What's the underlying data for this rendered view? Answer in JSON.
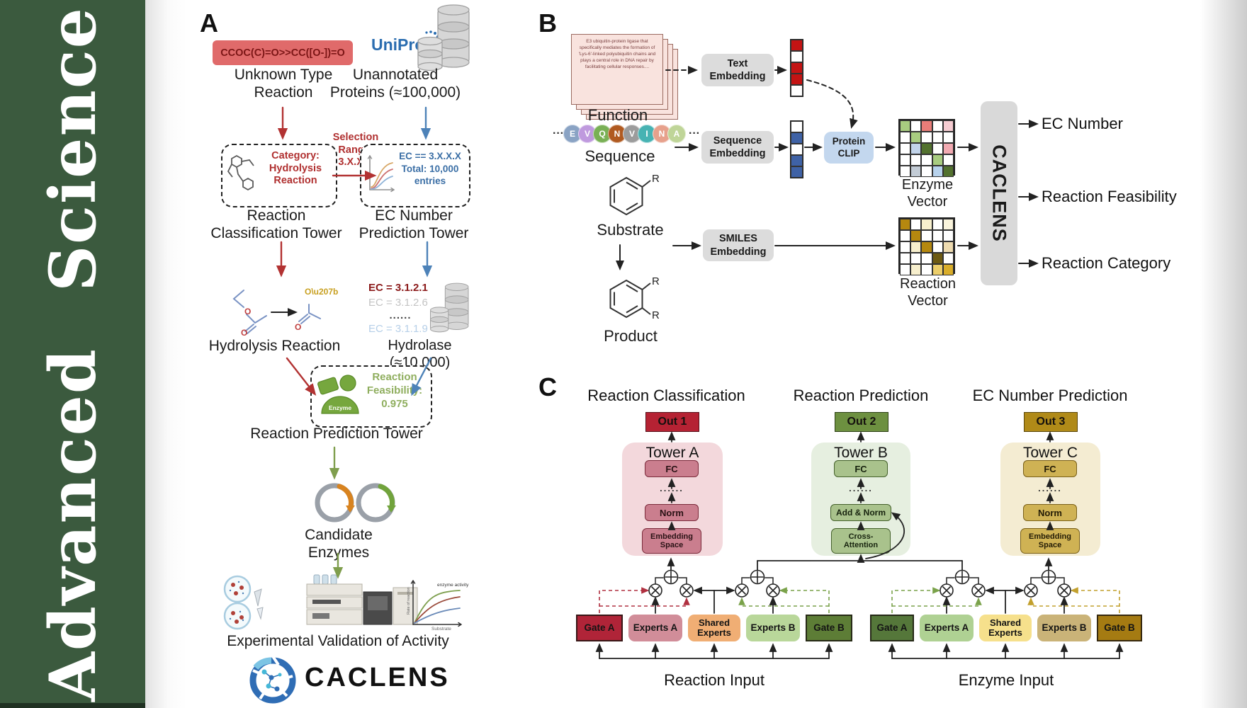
{
  "sidebar": {
    "title": "Advanced Science",
    "bg_color": "#3b5a3e"
  },
  "panelA": {
    "label": "A",
    "smiles": "CCOC(C)=O>>CC([O-])=O",
    "unknown_reaction": "Unknown Type\nReaction",
    "uniprot": "UniProt",
    "unannotated": "Unannotated\nProteins (≈100,000)",
    "selection": "Selection\nRange:\n3.X.X.X",
    "category_box": "Category:\nHydrolysis\nReaction",
    "ec_box": "EC == 3.X.X.X\nTotal: 10,000\nentries",
    "classification_tower": "Reaction\nClassification Tower",
    "ec_tower": "EC Number\nPrediction Tower",
    "ec_list": [
      "EC = 3.1.2.1",
      "EC = 3.1.2.6",
      "......",
      "EC = 3.1.1.9"
    ],
    "hydrolysis": "Hydrolysis Reaction",
    "hydrolase": "Hydrolase (≈10,000)",
    "enzyme": "Enzyme",
    "feasibility": "Reaction\nFeasibility:\n0.975",
    "prediction_tower": "Reaction Prediction Tower",
    "candidates": "Candidate Enzymes",
    "validation": "Experimental Validation of Activity",
    "logo": "CACLENS",
    "activity_chart": {
      "curve_label": "enzyme activity",
      "ylabel": "Rate of reaction",
      "xlabel": "Substrate"
    },
    "accent_red": "#b03030",
    "accent_blue": "#4d82b8",
    "accent_green": "#7f9e4d"
  },
  "panelB": {
    "label": "B",
    "function_text": "E3 ubiquitin-protein ligase that specifically mediates the formation of 'Lys-6'-linked polyubiquitin chains and plays a central role in DNA repair by facilitating cellular responses....",
    "function": "Function",
    "ellipsis": "···",
    "sequence_residues": [
      {
        "letter": "E",
        "color": "#8aa3c4"
      },
      {
        "letter": "V",
        "color": "#bf9ade"
      },
      {
        "letter": "Q",
        "color": "#79b055"
      },
      {
        "letter": "N",
        "color": "#b05a20"
      },
      {
        "letter": "V",
        "color": "#9c9c9c"
      },
      {
        "letter": "I",
        "color": "#47b3b3"
      },
      {
        "letter": "N",
        "color": "#e7a18c"
      },
      {
        "letter": "A",
        "color": "#bfd598"
      }
    ],
    "sequence": "Sequence",
    "substrate": "Substrate",
    "product": "Product",
    "r_group": "R",
    "text_embedding": "Text\nEmbedding",
    "sequence_embedding": "Sequence\nEmbedding",
    "smiles_embedding": "SMILES\nEmbedding",
    "protein_clip": "Protein\nCLIP",
    "text_vector": [
      "#c41414",
      "#ffffff",
      "#c41414",
      "#c41414",
      "#ffffff"
    ],
    "sequence_vector": [
      "#ffffff",
      "#3f62a6",
      "#ffffff",
      "#3f62a6",
      "#3f62a6"
    ],
    "enzyme_vector_label": "Enzyme Vector",
    "reaction_vector_label": "Reaction Vector",
    "enzyme_vector_grid": [
      [
        "#a8cc80",
        "#ffffff",
        "#e87d78",
        "#ffffff",
        "#f6ccd2"
      ],
      [
        "#ffffff",
        "#a8cc80",
        "#ffffff",
        "#ffffff",
        "#ffffff"
      ],
      [
        "#ffffff",
        "#c2d4ea",
        "#53722f",
        "#ffffff",
        "#f2aab2"
      ],
      [
        "#ffffff",
        "#ffffff",
        "#ffffff",
        "#a8cc80",
        "#ffffff"
      ],
      [
        "#ffffff",
        "#c3ccd6",
        "#ffffff",
        "#b7d2ec",
        "#53722f"
      ]
    ],
    "reaction_vector_grid": [
      [
        "#b5880f",
        "#ffffff",
        "#f7efcd",
        "#ffffff",
        "#faf4dc"
      ],
      [
        "#ffffff",
        "#b5880f",
        "#ffffff",
        "#ffffff",
        "#ffffff"
      ],
      [
        "#ffffff",
        "#f7efcd",
        "#b5880f",
        "#ffffff",
        "#eedbb0"
      ],
      [
        "#ffffff",
        "#ffffff",
        "#ffffff",
        "#6d5a12",
        "#ffffff"
      ],
      [
        "#ffffff",
        "#f7efcd",
        "#ffffff",
        "#ecce6a",
        "#d9ad2a"
      ]
    ],
    "caclens": "CACLENS",
    "outputs": [
      "EC Number",
      "Reaction Feasibility",
      "Reaction Category"
    ]
  },
  "panelC": {
    "label": "C",
    "sections": [
      "Reaction Classification",
      "Reaction Prediction",
      "EC Number Prediction"
    ],
    "outs": [
      "Out 1",
      "Out 2",
      "Out 3"
    ],
    "out_colors": [
      "#b52233",
      "#6d9040",
      "#b08a18"
    ],
    "towers": [
      {
        "title": "Tower A",
        "fc": "FC",
        "dots": "......",
        "norm": "Norm",
        "bottom": "Embedding\nSpace"
      },
      {
        "title": "Tower B",
        "fc": "FC",
        "dots": "......",
        "norm": "Add & Norm",
        "bottom": "Cross-\nAttention"
      },
      {
        "title": "Tower C",
        "fc": "FC",
        "dots": "......",
        "norm": "Norm",
        "bottom": "Embedding\nSpace"
      }
    ],
    "moe_left": {
      "gate_a": "Gate A",
      "experts_a": "Experts A",
      "shared": "Shared\nExperts",
      "experts_b": "Experts B",
      "gate_b": "Gate B",
      "input": "Reaction Input",
      "colors": {
        "gate_a": "#b02438",
        "experts_a": "#d18d99",
        "shared": "#f0ae74",
        "experts_b": "#b9d79a",
        "gate_b": "#5d7d36"
      }
    },
    "moe_right": {
      "gate_a": "Gate A",
      "experts_a": "Experts A",
      "shared": "Shared\nExperts",
      "experts_b": "Experts B",
      "gate_b": "Gate B",
      "input": "Enzyme Input",
      "colors": {
        "gate_a": "#55773a",
        "experts_a": "#afd193",
        "shared": "#f6e08c",
        "experts_b": "#cab378",
        "gate_b": "#a57b12"
      }
    }
  }
}
